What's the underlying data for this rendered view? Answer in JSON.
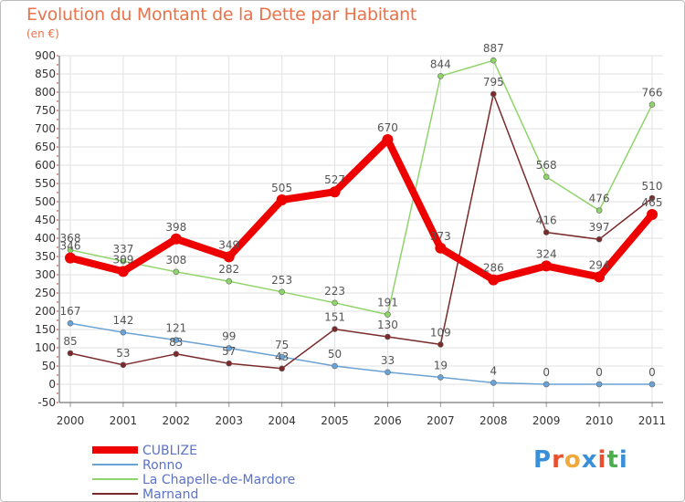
{
  "header": {
    "title": "Evolution du Montant de la Dette par Habitant",
    "unit": "(en €)"
  },
  "brand": {
    "text": "Proxiti",
    "colors": [
      "#3a8fd9",
      "#e94e2e",
      "#f2a93b",
      "#3a8fd9",
      "#e94e2e",
      "#4cae4c",
      "#3a8fd9"
    ]
  },
  "chart_data": {
    "type": "line",
    "title": "Evolution du Montant de la Dette par Habitant",
    "ylabel": "(en €)",
    "xlabel": "",
    "ylim": [
      -50,
      900
    ],
    "yticks": [
      -50,
      0,
      50,
      100,
      150,
      200,
      250,
      300,
      350,
      400,
      450,
      500,
      550,
      600,
      650,
      700,
      750,
      800,
      850,
      900
    ],
    "grid": true,
    "legend": "bottom-left",
    "categories": [
      "2000",
      "2001",
      "2002",
      "2003",
      "2004",
      "2005",
      "2006",
      "2007",
      "2008",
      "2009",
      "2010",
      "2011"
    ],
    "series": [
      {
        "name": "CUBLIZE",
        "color": "#ee0000",
        "width": 8,
        "values": [
          346,
          309,
          398,
          349,
          505,
          527,
          670,
          373,
          286,
          324,
          294,
          465
        ]
      },
      {
        "name": "Ronno",
        "color": "#6aa3d5",
        "width": 1.5,
        "values": [
          167,
          142,
          121,
          99,
          75,
          50,
          33,
          19,
          4,
          0,
          0,
          0
        ]
      },
      {
        "name": "La Chapelle-de-Mardore",
        "color": "#8fd46a",
        "width": 1.5,
        "values": [
          368,
          337,
          308,
          282,
          253,
          223,
          191,
          844,
          887,
          568,
          476,
          766
        ]
      },
      {
        "name": "Marnand",
        "color": "#7a2a2a",
        "width": 1.5,
        "values": [
          85,
          53,
          83,
          57,
          43,
          151,
          130,
          109,
          795,
          416,
          397,
          510
        ]
      }
    ]
  }
}
